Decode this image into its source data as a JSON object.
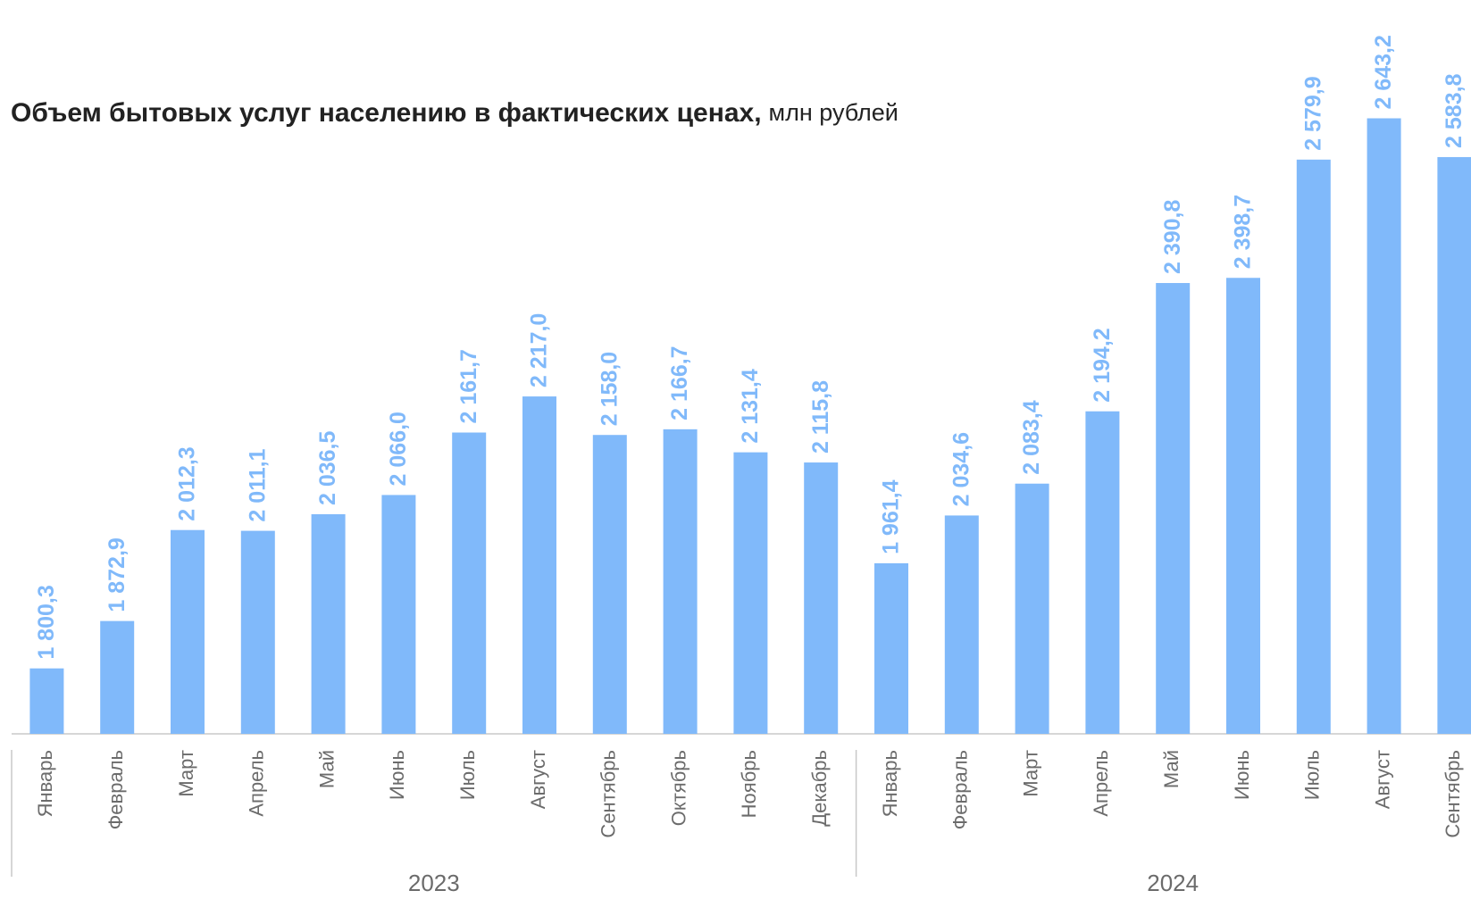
{
  "chart_data": {
    "type": "bar",
    "title": "Объем бытовых услуг населению в фактических ценах,",
    "unit": "млн рублей",
    "groups": [
      {
        "name": "2023",
        "categories": [
          "Январь",
          "Февраль",
          "Март",
          "Апрель",
          "Май",
          "Июнь",
          "Июль",
          "Август",
          "Сентябрь",
          "Октябрь",
          "Ноябрь",
          "Декабрь"
        ]
      },
      {
        "name": "2024",
        "categories": [
          "Январь",
          "Февраль",
          "Март",
          "Апрель",
          "Май",
          "Июнь",
          "Июль",
          "Август",
          "Сентябрь"
        ]
      }
    ],
    "values": [
      1800.3,
      1872.9,
      2012.3,
      2011.1,
      2036.5,
      2066.0,
      2161.7,
      2217.0,
      2158.0,
      2166.7,
      2131.4,
      2115.8,
      1961.4,
      2034.6,
      2083.4,
      2194.2,
      2390.8,
      2398.7,
      2579.9,
      2643.2,
      2583.8
    ],
    "value_labels": [
      "1 800,3",
      "1 872,9",
      "2 012,3",
      "2 011,1",
      "2 036,5",
      "2 066,0",
      "2 161,7",
      "2 217,0",
      "2 158,0",
      "2 166,7",
      "2 131,4",
      "2 115,8",
      "1 961,4",
      "2 034,6",
      "2 083,4",
      "2 194,2",
      "2 390,8",
      "2 398,7",
      "2 579,9",
      "2 643,2",
      "2 583,8"
    ],
    "color": "#80b9fa",
    "ylim": [
      1700,
      2700
    ]
  }
}
